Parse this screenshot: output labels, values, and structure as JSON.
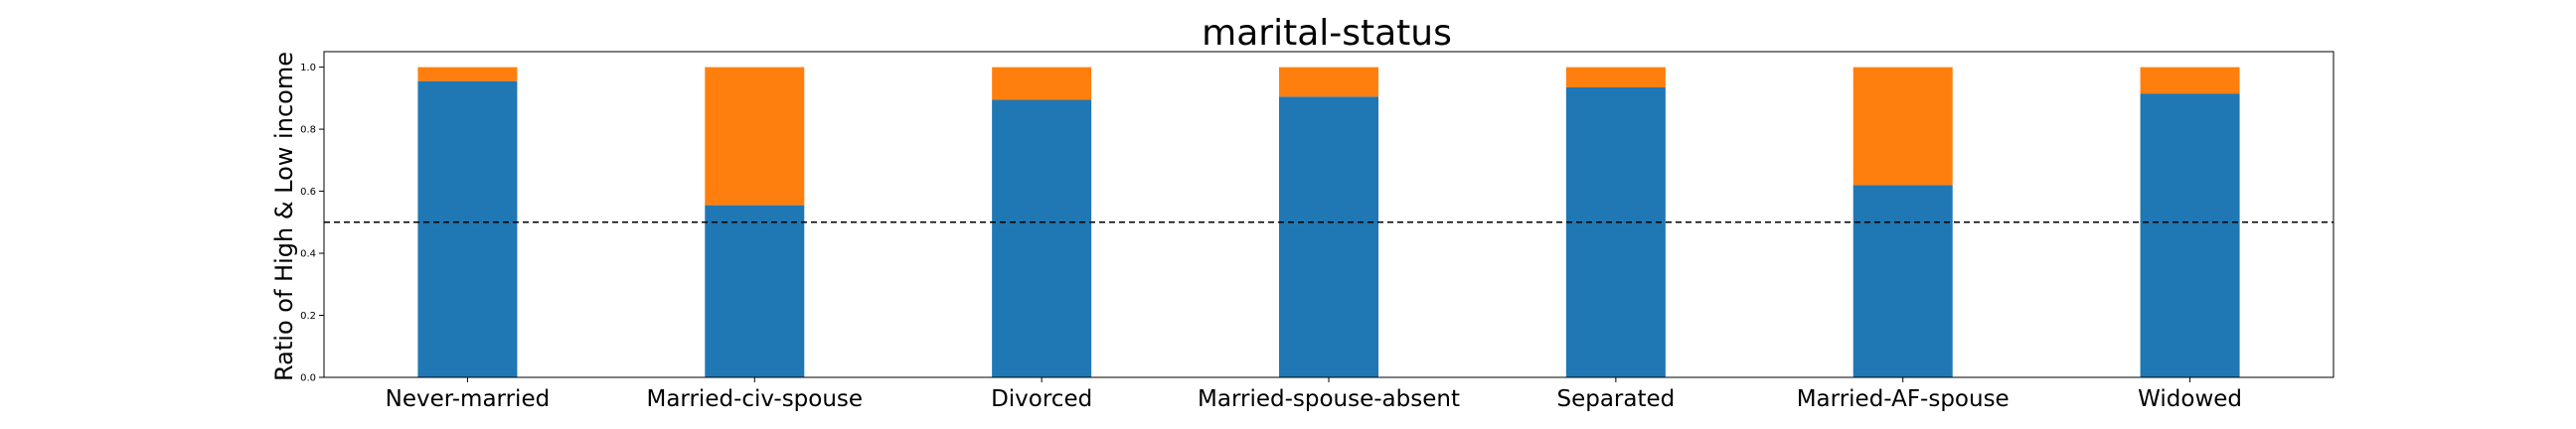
{
  "chart_data": {
    "type": "bar",
    "stacked": true,
    "title": "marital-status",
    "xlabel": "",
    "ylabel": "Ratio of High & Low income",
    "ylim": [
      0,
      1.05
    ],
    "yticks": [
      "0.0",
      "0.2",
      "0.4",
      "0.6",
      "0.8",
      "1.0"
    ],
    "grid": false,
    "reference_line": {
      "y": 0.5,
      "style": "dashed",
      "color": "#000000"
    },
    "categories": [
      "Never-married",
      "Married-civ-spouse",
      "Divorced",
      "Married-spouse-absent",
      "Separated",
      "Married-AF-spouse",
      "Widowed"
    ],
    "series": [
      {
        "color": "#1f77b4",
        "values": [
          0.955,
          0.555,
          0.895,
          0.905,
          0.935,
          0.62,
          0.915
        ]
      },
      {
        "color": "#ff7f0e",
        "values": [
          0.045,
          0.445,
          0.105,
          0.095,
          0.065,
          0.38,
          0.085
        ]
      }
    ]
  }
}
